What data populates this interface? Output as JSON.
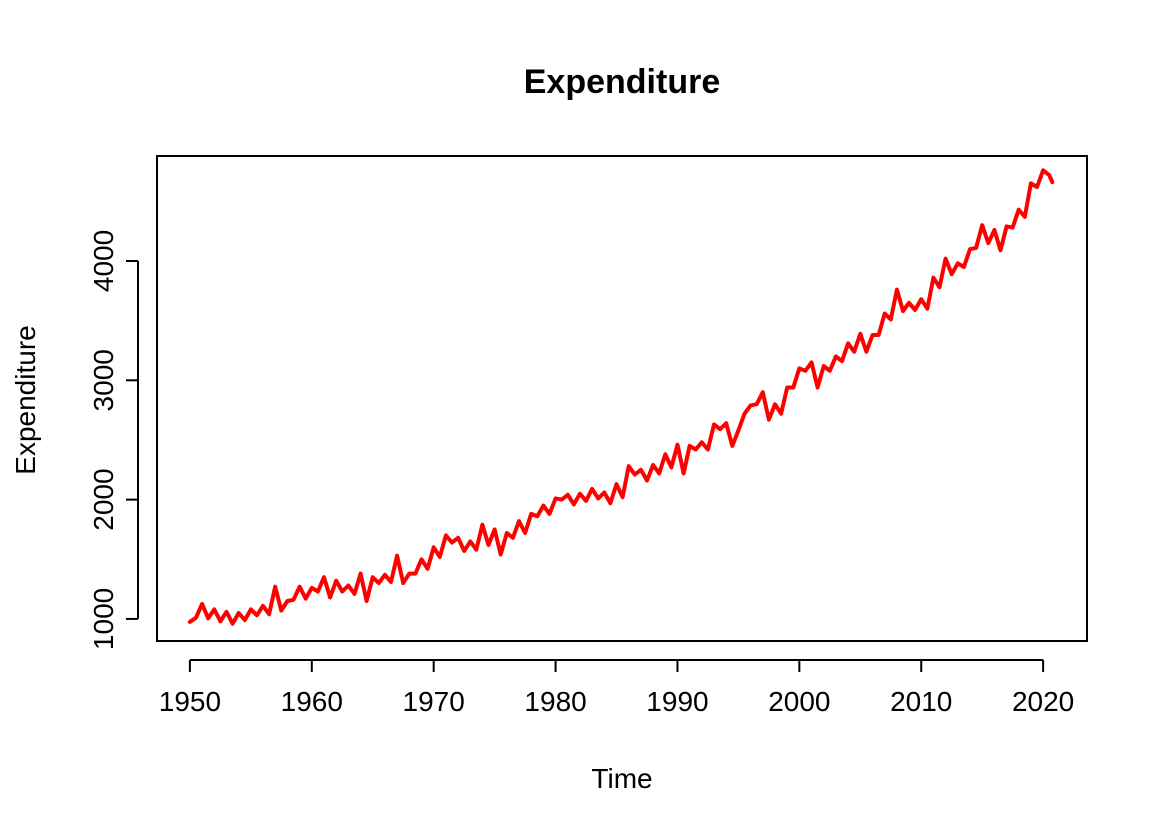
{
  "chart_data": {
    "type": "line",
    "title": "Expenditure",
    "xlabel": "Time",
    "ylabel": "Expenditure",
    "xlim": [
      1947.3,
      2023.6
    ],
    "ylim": [
      815,
      4880
    ],
    "x_ticks": [
      1950,
      1960,
      1970,
      1980,
      1990,
      2000,
      2010,
      2020
    ],
    "x_tick_labels": [
      "1950",
      "1960",
      "1970",
      "1980",
      "1990",
      "2000",
      "2010",
      "2020"
    ],
    "y_ticks": [
      1000,
      2000,
      3000,
      4000
    ],
    "y_tick_labels": [
      "1000",
      "2000",
      "3000",
      "4000"
    ],
    "grid": false,
    "legend": "none",
    "color": "#ff0000",
    "series": [
      {
        "x": [
          1950.0,
          1950.5,
          1951.0,
          1951.5,
          1952.0,
          1952.5,
          1953.0,
          1953.5,
          1954.0,
          1954.5,
          1955.0,
          1955.5,
          1956.0,
          1956.5,
          1957.0,
          1957.5,
          1958.0,
          1958.5,
          1959.0,
          1959.5,
          1960.0,
          1960.5,
          1961.0,
          1961.5,
          1962.0,
          1962.5,
          1963.0,
          1963.5,
          1964.0,
          1964.5,
          1965.0,
          1965.5,
          1966.0,
          1966.5,
          1967.0,
          1967.5,
          1968.0,
          1968.5,
          1969.0,
          1969.5,
          1970.0,
          1970.5,
          1971.0,
          1971.5,
          1972.0,
          1972.5,
          1973.0,
          1973.5,
          1974.0,
          1974.5,
          1975.0,
          1975.5,
          1976.0,
          1976.5,
          1977.0,
          1977.5,
          1978.0,
          1978.5,
          1979.0,
          1979.5,
          1980.0,
          1980.5,
          1981.0,
          1981.5,
          1982.0,
          1982.5,
          1983.0,
          1983.5,
          1984.0,
          1984.5,
          1985.0,
          1985.5,
          1986.0,
          1986.5,
          1987.0,
          1987.5,
          1988.0,
          1988.5,
          1989.0,
          1989.5,
          1990.0,
          1990.5,
          1991.0,
          1991.5,
          1992.0,
          1992.5,
          1993.0,
          1993.5,
          1994.0,
          1994.5,
          1995.0,
          1995.5,
          1996.0,
          1996.5,
          1997.0,
          1997.5,
          1998.0,
          1998.5,
          1999.0,
          1999.5,
          2000.0,
          2000.5,
          2001.0,
          2001.5,
          2002.0,
          2002.5,
          2003.0,
          2003.5,
          2004.0,
          2004.5,
          2005.0,
          2005.5,
          2006.0,
          2006.5,
          2007.0,
          2007.5,
          2008.0,
          2008.5,
          2009.0,
          2009.5,
          2010.0,
          2010.5,
          2011.0,
          2011.5,
          2012.0,
          2012.5,
          2013.0,
          2013.5,
          2014.0,
          2014.5,
          2015.0,
          2015.5,
          2016.0,
          2016.5,
          2017.0,
          2017.5,
          2018.0,
          2018.5,
          2019.0,
          2019.5,
          2020.0,
          2020.5,
          2020.75
        ],
        "y": [
          975,
          1010,
          1125,
          1005,
          1080,
          980,
          1060,
          960,
          1050,
          990,
          1080,
          1030,
          1110,
          1040,
          1270,
          1070,
          1150,
          1160,
          1270,
          1170,
          1260,
          1230,
          1350,
          1180,
          1320,
          1230,
          1280,
          1210,
          1380,
          1150,
          1350,
          1300,
          1370,
          1310,
          1530,
          1300,
          1380,
          1380,
          1500,
          1420,
          1600,
          1520,
          1700,
          1640,
          1680,
          1570,
          1650,
          1580,
          1790,
          1620,
          1750,
          1540,
          1720,
          1680,
          1820,
          1720,
          1880,
          1860,
          1950,
          1880,
          2010,
          2000,
          2040,
          1960,
          2050,
          1990,
          2090,
          2010,
          2060,
          1970,
          2130,
          2020,
          2280,
          2210,
          2250,
          2160,
          2290,
          2220,
          2380,
          2270,
          2460,
          2220,
          2450,
          2420,
          2480,
          2420,
          2630,
          2590,
          2640,
          2450,
          2580,
          2720,
          2790,
          2800,
          2900,
          2670,
          2800,
          2720,
          2940,
          2940,
          3100,
          3080,
          3150,
          2940,
          3120,
          3080,
          3200,
          3160,
          3310,
          3240,
          3390,
          3240,
          3380,
          3380,
          3560,
          3510,
          3760,
          3580,
          3650,
          3590,
          3680,
          3600,
          3860,
          3780,
          4020,
          3890,
          3980,
          3950,
          4100,
          4110,
          4300,
          4150,
          4260,
          4090,
          4290,
          4280,
          4430,
          4370,
          4650,
          4620,
          4760,
          4720,
          4660
        ]
      }
    ]
  }
}
